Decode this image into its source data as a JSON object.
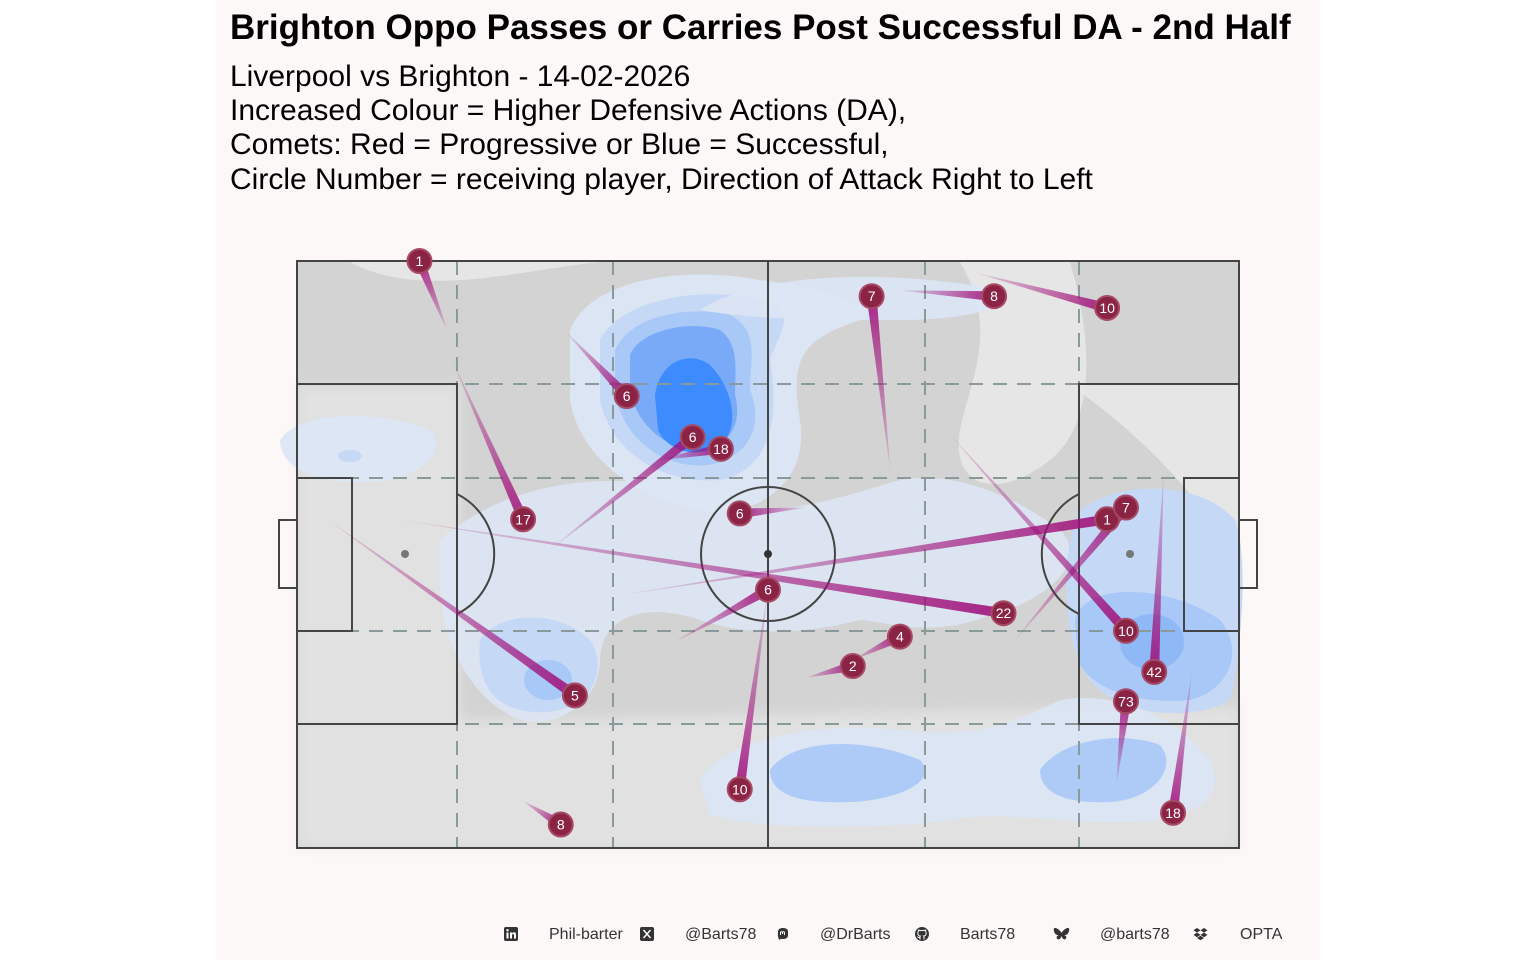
{
  "title": "Brighton Oppo Passes or Carries Post Successful DA - 2nd Half",
  "subtitle": [
    "Liverpool vs Brighton - 14-02-2026",
    "Increased Colour = Higher Defensive Actions (DA),",
    "Comets: Red = Progressive or Blue = Successful,",
    "Circle Number = receiving player, Direction of Attack Right to Left"
  ],
  "footer": {
    "linkedin": "Phil-barter",
    "x": "@Barts78",
    "mastodon": "@DrBarts",
    "github": "Barts78",
    "bluesky": "@barts78",
    "source": "OPTA"
  },
  "colors": {
    "pitch_grey": "#d3d3d3",
    "comet": "#a0107a",
    "marker": "#8b2345",
    "density_light": "#dce6f5",
    "density_mid": "#a8c8f7",
    "density_dark": "#3d8bff",
    "panel_bg": "#fdf8f8"
  },
  "chart_data": {
    "type": "scatter",
    "description_units": "pitch coordinates 0-100 (x along length, y across width)",
    "xlim": [
      0,
      100
    ],
    "ylim": [
      0,
      100
    ],
    "comets": [
      {
        "label": "1",
        "start": [
          13,
          100
        ],
        "end": [
          16,
          88
        ]
      },
      {
        "label": "17",
        "start": [
          24,
          56
        ],
        "end": [
          16.5,
          83
        ]
      },
      {
        "label": "6",
        "start": [
          35,
          77
        ],
        "end": [
          28.5,
          88
        ]
      },
      {
        "label": "18",
        "start": [
          45,
          68
        ],
        "end": [
          38,
          66
        ]
      },
      {
        "label": "6",
        "start": [
          42,
          70
        ],
        "end": [
          27,
          51
        ]
      },
      {
        "label": "22",
        "start": [
          75,
          40
        ],
        "end": [
          10.5,
          56
        ]
      },
      {
        "label": "5",
        "start": [
          29.5,
          26
        ],
        "end": [
          3.2,
          56
        ]
      },
      {
        "label": "1",
        "start": [
          86,
          56
        ],
        "end": [
          34,
          43
        ]
      },
      {
        "label": "10",
        "start": [
          47,
          10
        ],
        "end": [
          50,
          44
        ]
      },
      {
        "label": "6",
        "start": [
          50,
          44
        ],
        "end": [
          40,
          35
        ]
      },
      {
        "label": "6",
        "start": [
          47,
          57
        ],
        "end": [
          54,
          58
        ]
      },
      {
        "label": "10",
        "start": [
          86,
          92
        ],
        "end": [
          72,
          98
        ]
      },
      {
        "label": "8",
        "start": [
          74,
          94
        ],
        "end": [
          64,
          95
        ]
      },
      {
        "label": "7",
        "start": [
          61,
          94
        ],
        "end": [
          63,
          64
        ]
      },
      {
        "label": "10",
        "start": [
          88,
          37
        ],
        "end": [
          69,
          71
        ]
      },
      {
        "label": "42",
        "start": [
          91,
          30
        ],
        "end": [
          92,
          64
        ]
      },
      {
        "label": "7",
        "start": [
          88,
          58
        ],
        "end": [
          76,
          35
        ]
      },
      {
        "label": "2",
        "start": [
          59,
          31
        ],
        "end": [
          54,
          29
        ]
      },
      {
        "label": "4",
        "start": [
          64,
          36
        ],
        "end": [
          59,
          32
        ]
      },
      {
        "label": "18",
        "start": [
          93,
          6
        ],
        "end": [
          95,
          30
        ]
      },
      {
        "label": "73",
        "start": [
          88,
          25
        ],
        "end": [
          87,
          11
        ]
      },
      {
        "label": "8",
        "start": [
          28,
          4
        ],
        "end": [
          24,
          8
        ]
      }
    ],
    "density_blobs": [
      {
        "center": [
          40,
          80
        ],
        "level": 3
      },
      {
        "center": [
          39,
          76
        ],
        "level": 4
      },
      {
        "center": [
          91,
          34
        ],
        "level": 3
      },
      {
        "center": [
          27,
          28
        ],
        "level": 2
      },
      {
        "center": [
          51,
          12
        ],
        "level": 2
      },
      {
        "center": [
          88,
          14
        ],
        "level": 2
      }
    ]
  }
}
